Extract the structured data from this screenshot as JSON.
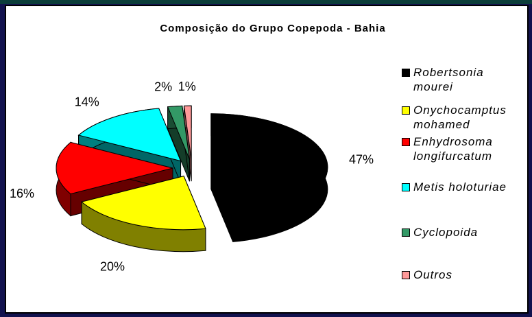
{
  "chart_data": {
    "type": "pie3d",
    "title": "Composição do Grupo Copepoda - Bahia",
    "categories": [
      "Robertsonia mourei",
      "Onychocamptus mohamed",
      "Enhydrosoma longifurcatum",
      "Metis holoturiae",
      "Cyclopoida",
      "Outros"
    ],
    "values": [
      47,
      20,
      16,
      14,
      2,
      1
    ],
    "value_labels": [
      "47%",
      "20%",
      "16%",
      "14%",
      "2%",
      "1%"
    ],
    "colors": [
      "#000000",
      "#ffff00",
      "#ff0000",
      "#00ffff",
      "#339966",
      "#ff9999"
    ],
    "legend": "right"
  }
}
